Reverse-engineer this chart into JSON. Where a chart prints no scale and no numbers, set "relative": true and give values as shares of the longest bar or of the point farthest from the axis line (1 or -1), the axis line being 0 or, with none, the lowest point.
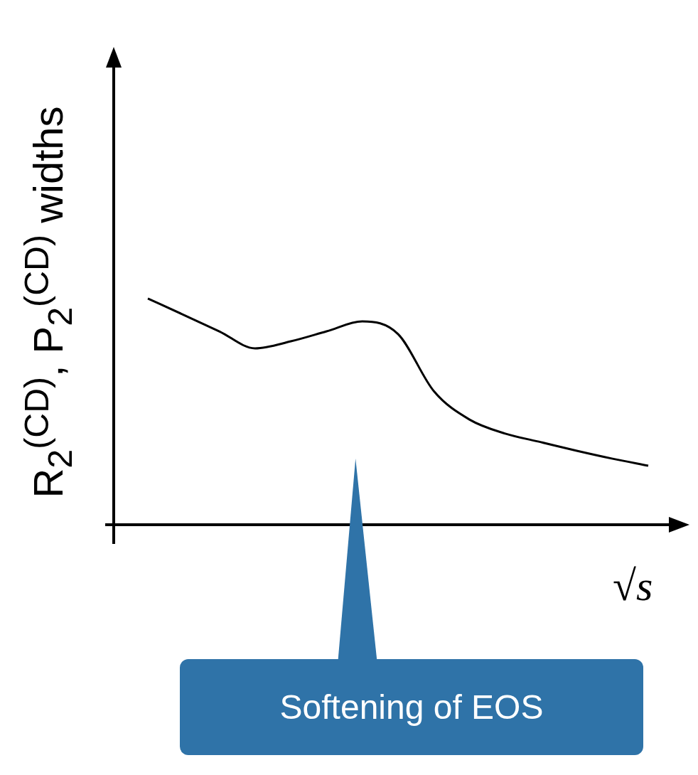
{
  "chart_data": {
    "type": "line",
    "relative": true,
    "ylabel": "R$_{2}$$^{(CD)}$, P$_{2}$$^{(CD)}$ widths",
    "xlabel": "√s",
    "annotations": [
      "Softening of EOS"
    ],
    "categories": [
      null,
      null,
      null,
      null,
      null,
      null,
      null,
      null,
      null,
      null,
      null,
      null,
      null,
      null,
      null
    ],
    "series": [
      {
        "color": "#000000",
        "values": [
          1,
          0.928,
          0.855,
          0.78,
          0.811,
          0.855,
          0.899,
          0.843,
          0.591,
          0.465,
          0.403,
          0.365,
          0.327,
          0.292,
          0.261
        ]
      }
    ]
  }
}
